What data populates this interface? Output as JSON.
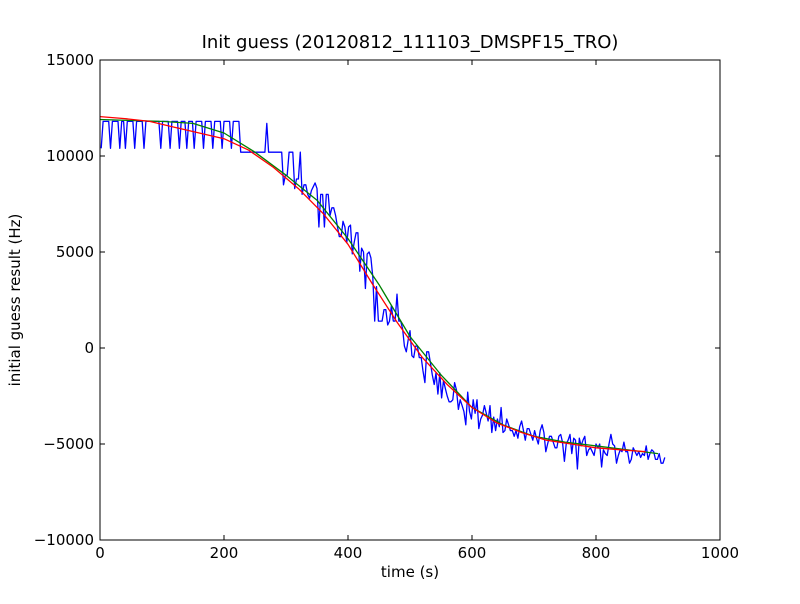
{
  "chart_data": {
    "type": "line",
    "title": "Init guess (20120812_111103_DMSPF15_TRO)",
    "xlabel": "time (s)",
    "ylabel": "initial guess result (Hz)",
    "xlim": [
      0,
      1000
    ],
    "ylim": [
      -10000,
      15000
    ],
    "x_ticks": [
      0,
      200,
      400,
      600,
      800,
      1000
    ],
    "x_tick_labels": [
      "0",
      "200",
      "400",
      "600",
      "800",
      "1000"
    ],
    "y_ticks": [
      -10000,
      -5000,
      0,
      5000,
      10000,
      15000
    ],
    "y_tick_labels": [
      "−10000",
      "−5000",
      "0",
      "5000",
      "10000",
      "15000"
    ],
    "grid": false,
    "legend": "none",
    "series": [
      {
        "color": "#0000ff",
        "x": [
          2,
          5,
          8,
          11,
          14,
          17,
          20,
          23,
          26,
          29,
          32,
          35,
          38,
          41,
          44,
          47,
          50,
          53,
          56,
          59,
          62,
          65,
          68,
          71,
          74,
          77,
          80,
          83,
          86,
          89,
          92,
          95,
          98,
          101,
          104,
          107,
          110,
          113,
          116,
          119,
          122,
          125,
          128,
          131,
          134,
          137,
          140,
          143,
          146,
          149,
          152,
          155,
          158,
          161,
          164,
          167,
          170,
          173,
          176,
          179,
          182,
          185,
          188,
          191,
          194,
          197,
          200,
          203,
          206,
          209,
          212,
          215,
          218,
          221,
          224,
          227,
          230,
          233,
          236,
          239,
          242,
          245,
          248,
          251,
          254,
          257,
          260,
          263,
          266,
          269,
          272,
          275,
          278,
          281,
          284,
          287,
          290,
          293,
          296,
          299,
          302,
          305,
          308,
          311,
          314,
          317,
          320,
          323,
          326,
          329,
          332,
          335,
          338,
          341,
          344,
          347,
          350,
          353,
          356,
          359,
          362,
          365,
          368,
          371,
          374,
          377,
          380,
          383,
          386,
          389,
          392,
          395,
          398,
          401,
          404,
          407,
          410,
          413,
          416,
          419,
          422,
          425,
          428,
          431,
          434,
          437,
          440,
          443,
          446,
          449,
          452,
          455,
          458,
          461,
          464,
          467,
          470,
          473,
          476,
          479,
          482,
          485,
          488,
          491,
          494,
          497,
          500,
          503,
          506,
          509,
          512,
          515,
          518,
          521,
          524,
          527,
          530,
          533,
          536,
          539,
          542,
          545,
          548,
          551,
          554,
          557,
          560,
          563,
          566,
          569,
          572,
          575,
          578,
          581,
          584,
          587,
          590,
          593,
          596,
          599,
          602,
          605,
          608,
          611,
          614,
          617,
          620,
          623,
          626,
          629,
          632,
          635,
          638,
          641,
          644,
          647,
          650,
          653,
          656,
          659,
          662,
          665,
          668,
          671,
          674,
          677,
          680,
          683,
          686,
          689,
          692,
          695,
          698,
          701,
          704,
          707,
          710,
          713,
          716,
          719,
          722,
          725,
          728,
          731,
          734,
          737,
          740,
          743,
          746,
          749,
          752,
          755,
          758,
          761,
          764,
          767,
          770,
          773,
          776,
          779,
          782,
          785,
          788,
          791,
          794,
          797,
          800,
          803,
          806,
          809,
          812,
          815,
          818,
          821,
          824,
          827,
          830,
          833,
          836,
          839,
          842,
          845,
          848,
          851,
          854,
          857,
          860,
          863,
          866,
          869,
          872,
          875,
          878,
          881,
          884,
          887,
          890,
          893,
          896,
          899,
          902,
          905,
          908,
          911
        ],
        "y": [
          10400,
          11800,
          11800,
          11800,
          11800,
          10400,
          11800,
          11800,
          11800,
          11800,
          10400,
          11800,
          11800,
          10400,
          11800,
          11800,
          11800,
          11800,
          10400,
          11800,
          11800,
          11800,
          11800,
          10400,
          11800,
          11800,
          11800,
          11800,
          11800,
          11800,
          11800,
          11800,
          10400,
          11800,
          11800,
          11800,
          11800,
          10400,
          11800,
          11800,
          11800,
          11800,
          10400,
          11800,
          11800,
          11800,
          10400,
          11800,
          11800,
          11800,
          10400,
          11800,
          11800,
          11800,
          11800,
          10400,
          11800,
          11800,
          11800,
          11800,
          10400,
          11800,
          11800,
          11800,
          11800,
          10400,
          11800,
          11800,
          11800,
          11800,
          10400,
          11800,
          11800,
          11800,
          11800,
          10200,
          10200,
          10200,
          10200,
          10200,
          10200,
          10200,
          10200,
          10200,
          10200,
          10200,
          10200,
          10200,
          10200,
          11700,
          10200,
          10200,
          10200,
          10200,
          10200,
          10200,
          10200,
          10200,
          8500,
          9000,
          9000,
          10200,
          10200,
          10200,
          8300,
          8800,
          8800,
          10200,
          8000,
          8500,
          8500,
          8000,
          7800,
          8200,
          8400,
          8600,
          8300,
          6300,
          8000,
          8000,
          6300,
          8000,
          8000,
          6900,
          7300,
          7300,
          6900,
          6300,
          5800,
          5800,
          6600,
          6300,
          5500,
          6300,
          6400,
          4900,
          5500,
          6000,
          6000,
          4000,
          5200,
          5000,
          3100,
          4900,
          5000,
          4700,
          3700,
          1400,
          3200,
          1400,
          1400,
          1400,
          2000,
          2000,
          1200,
          1400,
          2200,
          1400,
          1400,
          2800,
          1400,
          1400,
          1000,
          100,
          -200,
          400,
          900,
          -400,
          -500,
          100,
          100,
          -500,
          -500,
          -1200,
          -1800,
          -200,
          -200,
          -800,
          -1400,
          -1900,
          -1300,
          -2400,
          -1300,
          -2600,
          -1700,
          -2100,
          -2500,
          -2800,
          -2800,
          -2700,
          -1800,
          -2200,
          -3200,
          -2700,
          -3000,
          -3300,
          -4000,
          -2300,
          -3300,
          -3700,
          -2700,
          -3400,
          -2700,
          -4200,
          -3700,
          -3500,
          -3000,
          -3400,
          -3800,
          -3000,
          -4400,
          -3600,
          -4300,
          -3700,
          -4100,
          -3100,
          -4400,
          -4300,
          -3700,
          -4000,
          -4300,
          -4300,
          -4600,
          -4300,
          -4700,
          -4100,
          -3800,
          -4300,
          -4800,
          -4200,
          -4200,
          -4500,
          -4800,
          -4300,
          -4700,
          -5000,
          -4300,
          -4000,
          -4400,
          -5400,
          -5000,
          -4600,
          -4600,
          -4900,
          -5200,
          -5200,
          -4600,
          -4500,
          -4900,
          -5900,
          -5000,
          -4800,
          -4500,
          -5500,
          -4700,
          -4800,
          -6300,
          -4700,
          -5100,
          -4800,
          -4600,
          -5600,
          -5300,
          -5200,
          -5400,
          -5600,
          -5000,
          -5200,
          -5000,
          -6200,
          -5300,
          -5500,
          -5600,
          -5000,
          -4500,
          -5000,
          -5100,
          -6000,
          -5600,
          -5300,
          -5400,
          -4900,
          -5400,
          -5400,
          -6000,
          -5800,
          -5200,
          -5400,
          -5600,
          -5400,
          -5700,
          -5500,
          -5600,
          -5100,
          -5800,
          -5500,
          -5300,
          -5400,
          -5800,
          -5800,
          -5500,
          -6000,
          -6000,
          -5700
        ]
      },
      {
        "color": "#008000",
        "x": [
          0,
          50,
          100,
          150,
          200,
          250,
          300,
          350,
          400,
          450,
          500,
          550,
          600,
          650,
          700,
          750,
          800,
          850,
          900
        ],
        "y": [
          11900,
          11850,
          11800,
          11700,
          11200,
          10200,
          9000,
          7700,
          5700,
          3300,
          600,
          -1400,
          -3100,
          -4000,
          -4600,
          -4900,
          -5100,
          -5300,
          -5500
        ]
      },
      {
        "color": "#ff0000",
        "x": [
          0,
          40,
          80,
          120,
          160,
          200,
          240,
          280,
          320,
          360,
          400,
          440,
          480,
          520,
          560,
          600,
          640,
          680,
          720,
          760,
          800,
          840,
          880
        ],
        "y": [
          12050,
          11950,
          11800,
          11500,
          11200,
          10900,
          10300,
          9400,
          8300,
          7000,
          5400,
          3300,
          1300,
          -500,
          -1900,
          -3100,
          -3900,
          -4400,
          -4800,
          -5000,
          -5200,
          -5300,
          -5400
        ]
      }
    ]
  }
}
